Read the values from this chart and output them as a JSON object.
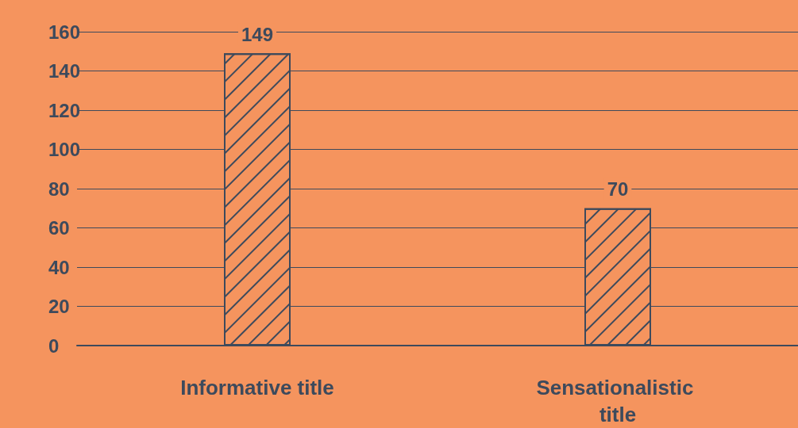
{
  "chart_data": {
    "type": "bar",
    "categories": [
      "Informative title",
      "Sensationalistic title"
    ],
    "values": [
      149,
      70
    ],
    "color": "#f5945e",
    "ylim": [
      0,
      160
    ],
    "yticks": [
      0,
      20,
      40,
      60,
      80,
      100,
      120,
      140,
      160
    ],
    "grid": "y",
    "data_labels": true
  }
}
